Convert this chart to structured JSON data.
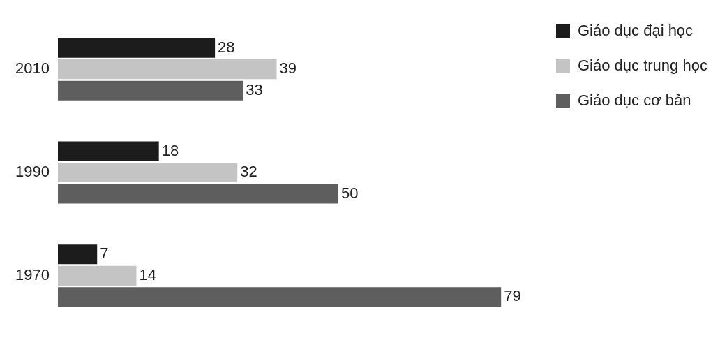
{
  "chart_data": {
    "type": "bar",
    "orientation": "horizontal",
    "categories": [
      "2010",
      "1990",
      "1970"
    ],
    "series": [
      {
        "name": "Giáo dục đại học",
        "color": "#1c1c1c",
        "values": [
          28,
          18,
          7
        ]
      },
      {
        "name": "Giáo dục trung học",
        "color": "#c4c4c4",
        "values": [
          39,
          32,
          14
        ]
      },
      {
        "name": "Giáo dục cơ bản",
        "color": "#5e5e5e",
        "values": [
          33,
          50,
          79
        ]
      }
    ],
    "data_labels": true,
    "legend": "top right",
    "grid": false
  }
}
